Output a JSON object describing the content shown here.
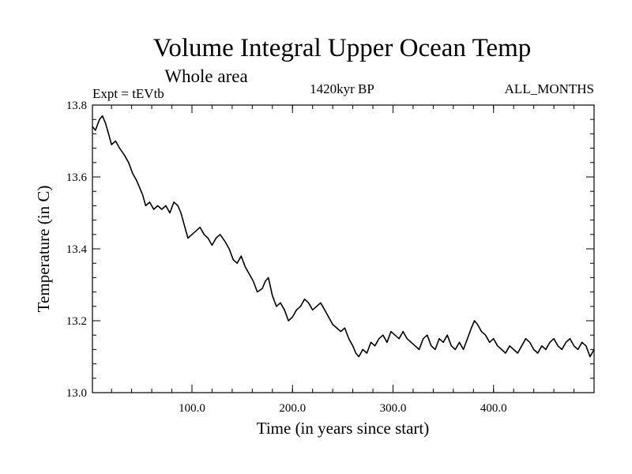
{
  "chart_data": {
    "type": "line",
    "title": "Volume Integral Upper Ocean Temp",
    "subtitle": "Whole area",
    "left_label": "Expt = tEVtb",
    "center_label": "1420kyr BP",
    "right_label": "ALL_MONTHS",
    "xlabel": "Time (in years since start)",
    "ylabel": "Temperature (in C)",
    "xlim": [
      1,
      500
    ],
    "ylim": [
      13.0,
      13.8
    ],
    "xticks": [
      {
        "value": 100,
        "label": "100.0"
      },
      {
        "value": 200,
        "label": "200.0"
      },
      {
        "value": 300,
        "label": "300.0"
      },
      {
        "value": 400,
        "label": "400.0"
      }
    ],
    "yticks": [
      {
        "value": 13.0,
        "label": "13.0"
      },
      {
        "value": 13.2,
        "label": "13.2"
      },
      {
        "value": 13.4,
        "label": "13.4"
      },
      {
        "value": 13.6,
        "label": "13.6"
      },
      {
        "value": 13.8,
        "label": "13.8"
      }
    ],
    "x_minor_step": 20,
    "y_minor_step": 0.04,
    "series": [
      {
        "name": "Temperature",
        "color": "#000000",
        "x": [
          1,
          4,
          8,
          11,
          14,
          17,
          20,
          24,
          28,
          33,
          37,
          41,
          45,
          48,
          51,
          54,
          58,
          62,
          66,
          70,
          74,
          78,
          82,
          86,
          89,
          92,
          96,
          100,
          104,
          108,
          112,
          116,
          120,
          124,
          128,
          133,
          137,
          141,
          145,
          149,
          153,
          157,
          161,
          165,
          170,
          173,
          176,
          180,
          184,
          188,
          192,
          196,
          200,
          204,
          208,
          212,
          216,
          220,
          224,
          228,
          232,
          236,
          240,
          244,
          248,
          252,
          256,
          260,
          263,
          266,
          270,
          274,
          278,
          282,
          286,
          290,
          294,
          298,
          302,
          306,
          310,
          314,
          318,
          322,
          326,
          330,
          334,
          338,
          342,
          346,
          350,
          354,
          358,
          362,
          366,
          370,
          374,
          378,
          381,
          384,
          388,
          392,
          396,
          400,
          404,
          408,
          412,
          416,
          420,
          424,
          428,
          432,
          436,
          440,
          444,
          448,
          452,
          456,
          460,
          464,
          468,
          472,
          476,
          480,
          484,
          488,
          492,
          496,
          500
        ],
        "values": [
          13.74,
          13.73,
          13.76,
          13.77,
          13.75,
          13.72,
          13.69,
          13.7,
          13.68,
          13.66,
          13.64,
          13.61,
          13.59,
          13.57,
          13.55,
          13.52,
          13.53,
          13.51,
          13.52,
          13.51,
          13.52,
          13.5,
          13.53,
          13.52,
          13.5,
          13.47,
          13.43,
          13.44,
          13.45,
          13.46,
          13.44,
          13.43,
          13.41,
          13.43,
          13.44,
          13.42,
          13.4,
          13.37,
          13.36,
          13.38,
          13.35,
          13.33,
          13.31,
          13.28,
          13.29,
          13.31,
          13.32,
          13.27,
          13.24,
          13.25,
          13.23,
          13.2,
          13.21,
          13.23,
          13.24,
          13.26,
          13.25,
          13.23,
          13.24,
          13.25,
          13.23,
          13.21,
          13.19,
          13.18,
          13.17,
          13.18,
          13.15,
          13.13,
          13.11,
          13.1,
          13.12,
          13.11,
          13.14,
          13.13,
          13.15,
          13.16,
          13.14,
          13.17,
          13.16,
          13.15,
          13.17,
          13.15,
          13.14,
          13.13,
          13.12,
          13.15,
          13.16,
          13.13,
          13.12,
          13.15,
          13.14,
          13.16,
          13.13,
          13.12,
          13.14,
          13.12,
          13.15,
          13.18,
          13.2,
          13.19,
          13.17,
          13.16,
          13.14,
          13.15,
          13.13,
          13.12,
          13.11,
          13.13,
          13.12,
          13.11,
          13.13,
          13.15,
          13.14,
          13.12,
          13.11,
          13.13,
          13.12,
          13.14,
          13.15,
          13.13,
          13.12,
          13.14,
          13.15,
          13.13,
          13.12,
          13.14,
          13.13,
          13.1,
          13.12
        ]
      }
    ]
  }
}
